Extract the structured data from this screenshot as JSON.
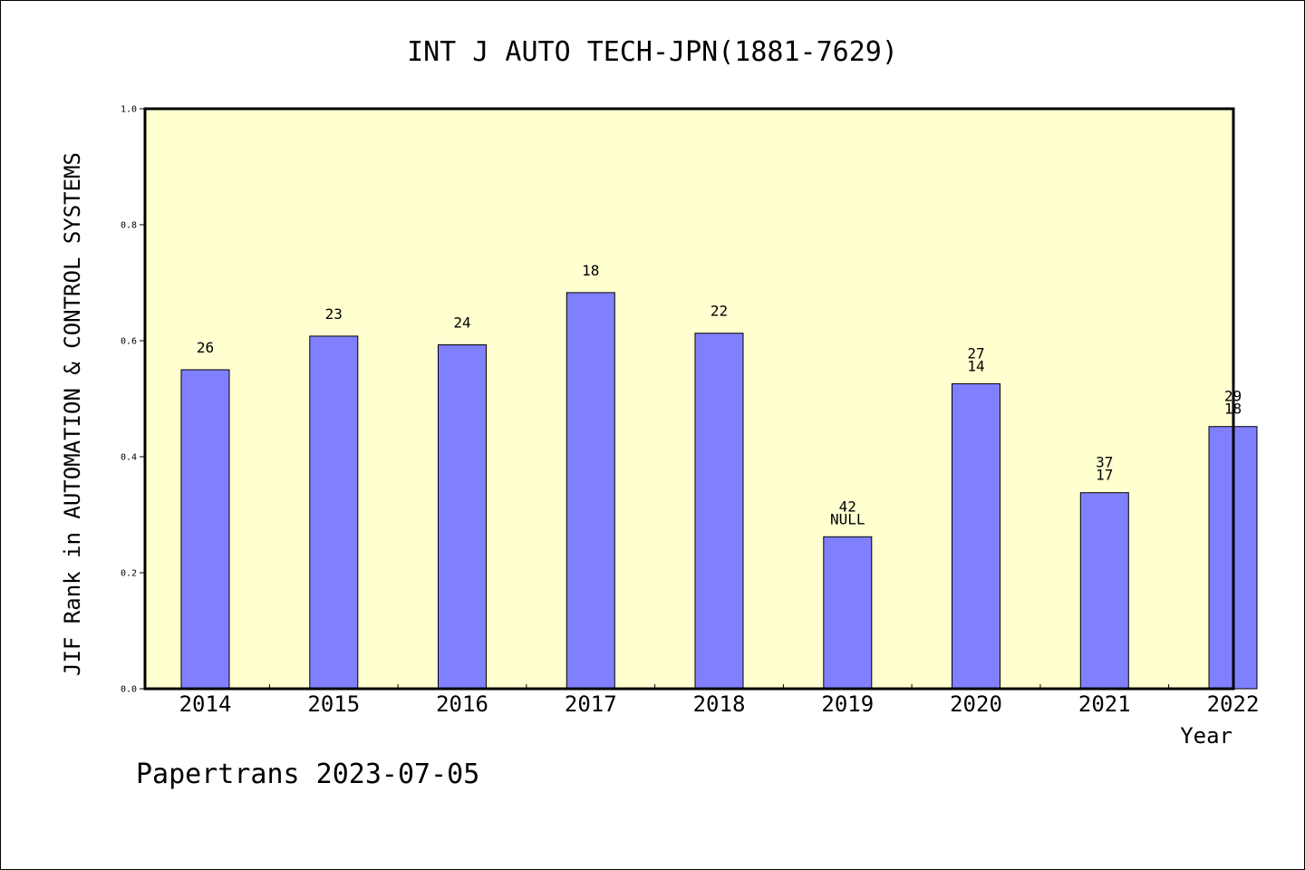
{
  "chart_data": {
    "type": "bar",
    "title": "INT J AUTO TECH-JPN(1881-7629)",
    "xlabel": "Year",
    "ylabel": "JIF Rank in AUTOMATION & CONTROL SYSTEMS",
    "ylim": [
      0,
      1.0
    ],
    "yticks": [
      "0.0",
      "0.2",
      "0.4",
      "0.6",
      "0.8",
      "1.0"
    ],
    "grid": false,
    "categories": [
      "2014",
      "2015",
      "2016",
      "2017",
      "2018",
      "2019",
      "2020",
      "2021",
      "2022"
    ],
    "values": [
      0.55,
      0.608,
      0.593,
      0.683,
      0.613,
      0.262,
      0.526,
      0.338,
      0.452
    ],
    "bar_labels": [
      [
        "26"
      ],
      [
        "23"
      ],
      [
        "24"
      ],
      [
        "18"
      ],
      [
        "22"
      ],
      [
        "42",
        "NULL"
      ],
      [
        "27",
        "14"
      ],
      [
        "37",
        "17"
      ],
      [
        "29",
        "18"
      ]
    ],
    "bar_color": "#8080ff",
    "plot_background": "#ffffd0"
  },
  "footer": "Papertrans 2023-07-05"
}
